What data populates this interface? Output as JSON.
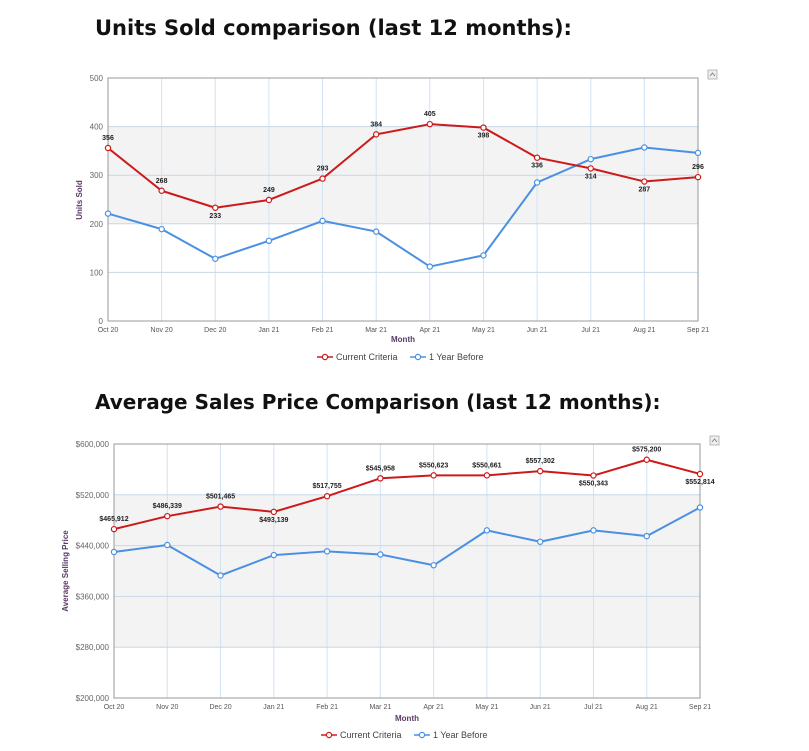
{
  "headings": {
    "units": "Units Sold comparison (last 12 months):",
    "price": "Average Sales Price Comparison (last 12 months):"
  },
  "legend": {
    "current": "Current Criteria",
    "prior": "1 Year Before"
  },
  "colors": {
    "current": "#cc1a1a",
    "prior": "#4a90e2",
    "grid_vertical": "#cfe3f5",
    "band": "#f3f3f3"
  },
  "chart_data": [
    {
      "type": "line",
      "categories": [
        "Oct 20",
        "Nov 20",
        "Dec 20",
        "Jan 21",
        "Feb 21",
        "Mar 21",
        "Apr 21",
        "May 21",
        "Jun 21",
        "Jul 21",
        "Aug 21",
        "Sep 21"
      ],
      "xlabel": "Month",
      "ylabel": "Units Sold",
      "ylim": [
        0,
        500
      ],
      "yticks": [
        0,
        100,
        200,
        300,
        400,
        500
      ],
      "ytick_labels": [
        "0",
        "100",
        "200",
        "300",
        "400",
        "500"
      ],
      "series": [
        {
          "name": "Current Criteria",
          "values": [
            356,
            268,
            233,
            249,
            293,
            384,
            405,
            398,
            336,
            314,
            287,
            296
          ],
          "labels": [
            "356",
            "268",
            "233",
            "249",
            "293",
            "384",
            "405",
            "398",
            "336",
            "314",
            "287",
            "296"
          ]
        },
        {
          "name": "1 Year Before",
          "values": [
            221,
            189,
            128,
            165,
            206,
            184,
            112,
            135,
            285,
            333,
            357,
            346
          ]
        }
      ],
      "grid": true,
      "legend_position": "bottom"
    },
    {
      "type": "line",
      "categories": [
        "Oct 20",
        "Nov 20",
        "Dec 20",
        "Jan 21",
        "Feb 21",
        "Mar 21",
        "Apr 21",
        "May 21",
        "Jun 21",
        "Jul 21",
        "Aug 21",
        "Sep 21"
      ],
      "xlabel": "Month",
      "ylabel": "Average Selling Price",
      "ylim": [
        200000,
        600000
      ],
      "yticks": [
        200000,
        280000,
        360000,
        440000,
        520000,
        600000
      ],
      "ytick_labels": [
        "$200,000",
        "$280,000",
        "$360,000",
        "$440,000",
        "$520,000",
        "$600,000"
      ],
      "series": [
        {
          "name": "Current Criteria",
          "values": [
            465912,
            486339,
            501465,
            493139,
            517755,
            545958,
            550623,
            550661,
            557302,
            550343,
            575200,
            552814
          ],
          "labels": [
            "$465,912",
            "$486,339",
            "$501,465",
            "$493,139",
            "$517,755",
            "$545,958",
            "$550,623",
            "$550,661",
            "$557,302",
            "$550,343",
            "$575,200",
            "$552,814"
          ]
        },
        {
          "name": "1 Year Before",
          "values": [
            430000,
            441000,
            393000,
            425000,
            431000,
            426000,
            409000,
            464000,
            446000,
            464000,
            455000,
            500000
          ]
        }
      ],
      "grid": true,
      "legend_position": "bottom"
    }
  ]
}
